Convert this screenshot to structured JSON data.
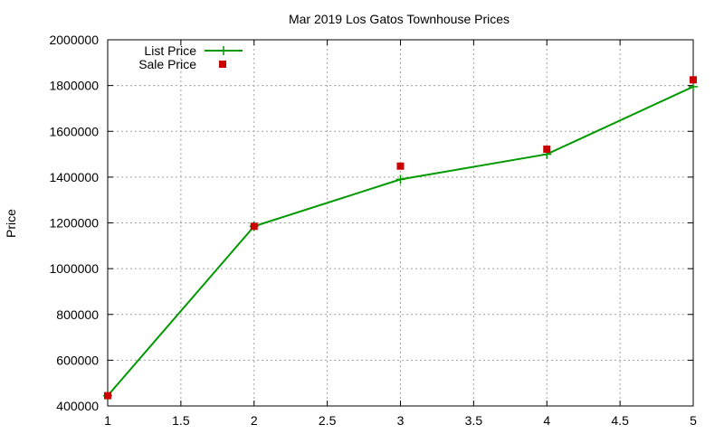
{
  "chart_data": {
    "type": "line",
    "title": "Mar 2019 Los Gatos Townhouse Prices",
    "xlabel": "",
    "ylabel": "Price",
    "xlim": [
      1,
      5
    ],
    "ylim": [
      400000,
      2000000
    ],
    "x_ticks": [
      "1",
      "1.5",
      "2",
      "2.5",
      "3",
      "3.5",
      "4",
      "4.5",
      "5"
    ],
    "y_ticks": [
      "400000",
      "600000",
      "800000",
      "1000000",
      "1200000",
      "1400000",
      "1600000",
      "1800000",
      "2000000"
    ],
    "grid": true,
    "legend_position": "top-left",
    "series": [
      {
        "name": "List Price",
        "style": "line-plus",
        "color": "#009900",
        "x": [
          1,
          2,
          3,
          4,
          5
        ],
        "values": [
          445000,
          1185000,
          1390000,
          1500000,
          1795000
        ]
      },
      {
        "name": "Sale Price",
        "style": "square-points",
        "color": "#cc0000",
        "x": [
          1,
          2,
          3,
          4,
          5
        ],
        "values": [
          445000,
          1185000,
          1448000,
          1522000,
          1825000
        ]
      }
    ]
  }
}
